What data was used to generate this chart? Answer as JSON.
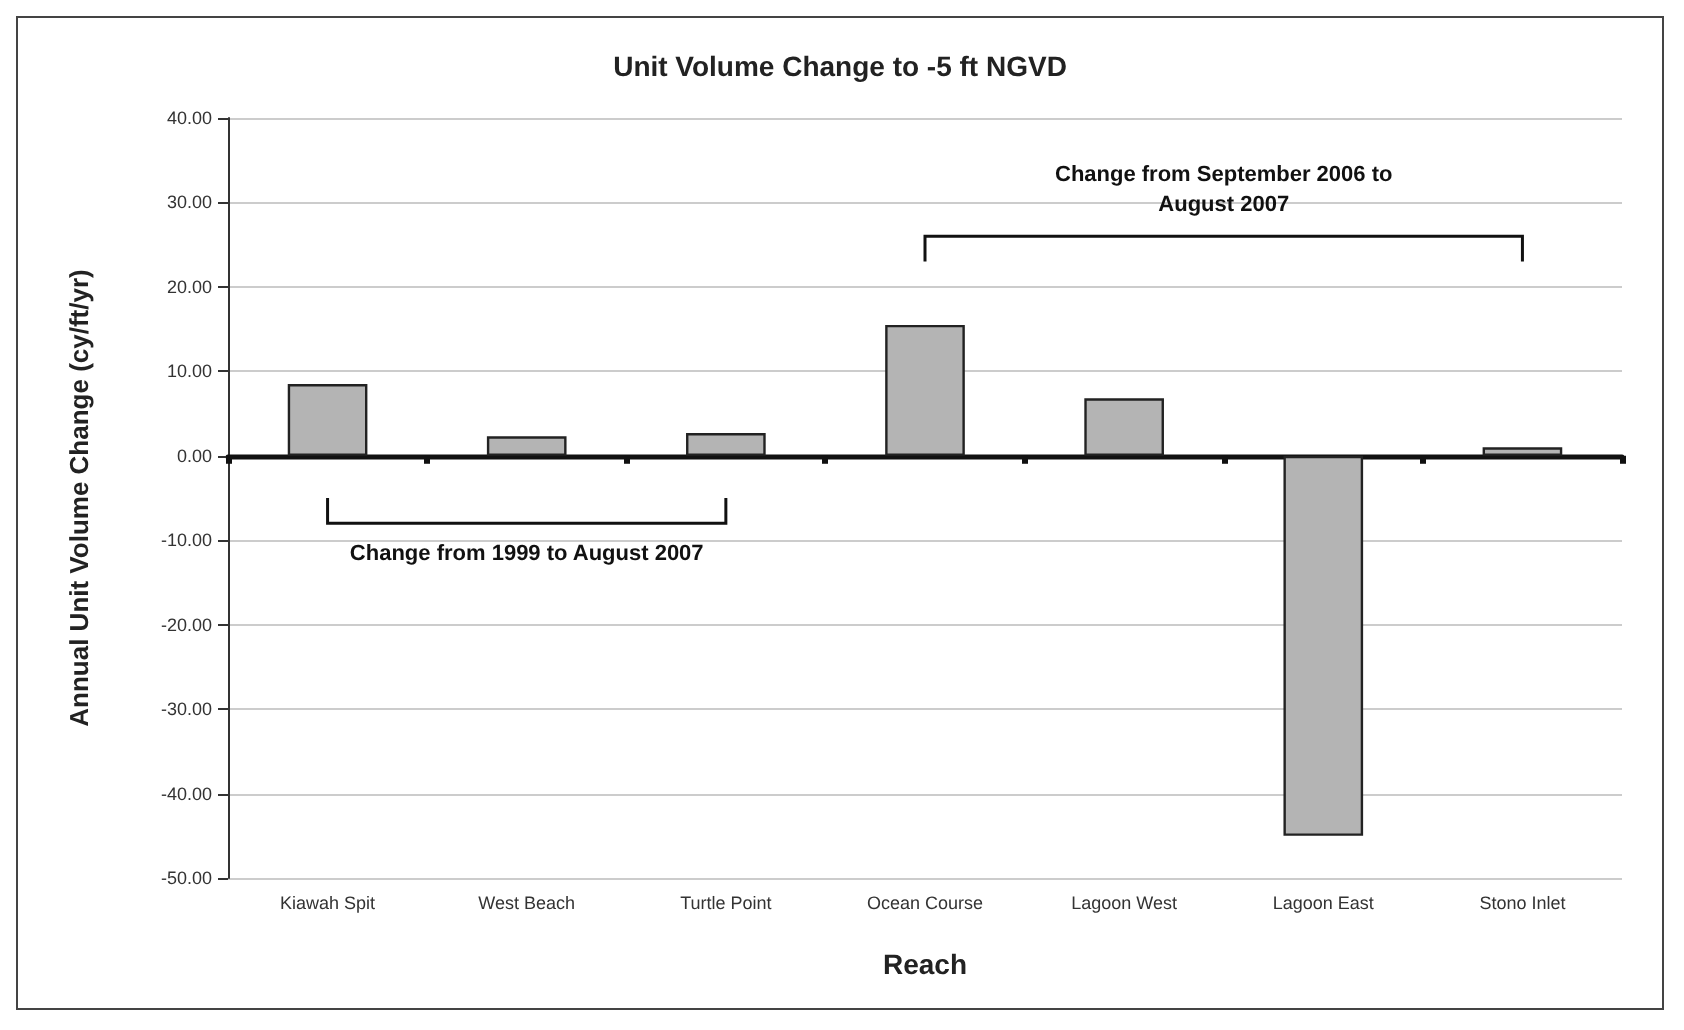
{
  "chart_data": {
    "type": "bar",
    "title": "Unit Volume Change to -5 ft NGVD",
    "xlabel": "Reach",
    "ylabel": "Annual Unit Volume Change (cy/ft/yr)",
    "categories": [
      "Kiawah Spit",
      "West Beach",
      "Turtle Point",
      "Ocean Course",
      "Lagoon West",
      "Lagoon East",
      "Stono Inlet"
    ],
    "values": [
      8.5,
      2.3,
      2.7,
      15.5,
      6.8,
      -45,
      1.0
    ],
    "color": "#b4b4b4",
    "ylim": [
      -50,
      40
    ],
    "yticks": [
      {
        "value": -50,
        "label": "-50.00"
      },
      {
        "value": -40,
        "label": "-40.00"
      },
      {
        "value": -30,
        "label": "-30.00"
      },
      {
        "value": -20,
        "label": "-20.00"
      },
      {
        "value": -10,
        "label": "-10.00"
      },
      {
        "value": 0,
        "label": "0.00"
      },
      {
        "value": 10,
        "label": "10.00"
      },
      {
        "value": 20,
        "label": "20.00"
      },
      {
        "value": 30,
        "label": "30.00"
      },
      {
        "value": 40,
        "label": "40.00"
      }
    ],
    "grid": "y",
    "annotations": [
      "Change from 1999 to August 2007",
      "Change from September 2006 to\nAugust 2007"
    ]
  }
}
